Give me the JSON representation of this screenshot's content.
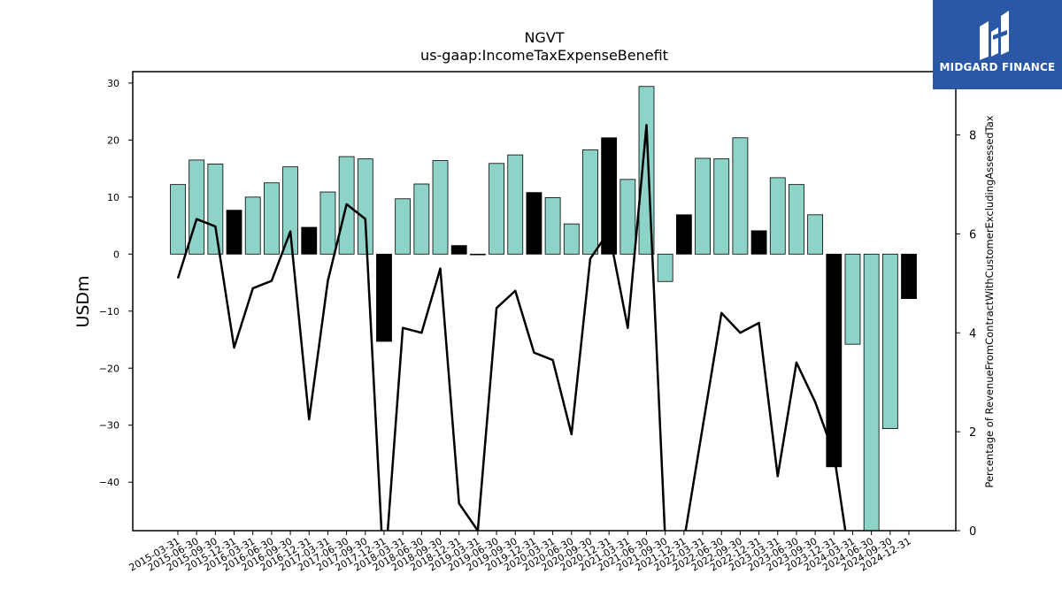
{
  "brand": {
    "name": "MIDGARD FINANCE"
  },
  "chart_data": {
    "type": "bar",
    "title": "NGVT",
    "subtitle": "us-gaap:IncomeTaxExpenseBenefit",
    "ylabel": "USDm",
    "y2label": "Percentage of RevenueFromContractWithCustomerExcludingAssessedTax",
    "ylim": [
      -48.5,
      32.0
    ],
    "y2lim": [
      0,
      9.28
    ],
    "yticks": [
      30,
      20,
      10,
      0,
      -10,
      -20,
      -30,
      -40
    ],
    "y2ticks": [
      0,
      2,
      4,
      6,
      8
    ],
    "categories": [
      "2015-03-31",
      "2015-06-30",
      "2015-09-30",
      "2015-12-31",
      "2016-03-31",
      "2016-06-30",
      "2016-09-30",
      "2016-12-31",
      "2017-03-31",
      "2017-06-30",
      "2017-09-30",
      "2017-12-31",
      "2018-03-31",
      "2018-06-30",
      "2018-09-30",
      "2018-12-31",
      "2019-03-31",
      "2019-06-30",
      "2019-09-30",
      "2019-12-31",
      "2020-03-31",
      "2020-06-30",
      "2020-09-30",
      "2020-12-31",
      "2021-03-31",
      "2021-06-30",
      "2021-09-30",
      "2021-12-31",
      "2022-03-31",
      "2022-06-30",
      "2022-09-30",
      "2022-12-31",
      "2023-03-31",
      "2023-06-30",
      "2023-09-30",
      "2023-12-31",
      "2024-03-31",
      "2024-06-30",
      "2024-09-30",
      "2024-12-31"
    ],
    "series": [
      {
        "kind": "bar",
        "values": [
          12.2,
          16.5,
          15.8,
          7.7,
          10.0,
          12.5,
          15.3,
          4.7,
          10.9,
          17.1,
          16.7,
          -15.3,
          9.7,
          12.3,
          16.4,
          1.5,
          0.0,
          15.9,
          17.4,
          10.8,
          9.9,
          5.3,
          18.3,
          20.4,
          13.1,
          29.4,
          -4.8,
          6.9,
          16.8,
          16.7,
          20.4,
          4.1,
          13.4,
          12.2,
          6.9,
          -37.3,
          -15.8,
          -48.5,
          -30.6,
          -7.8
        ],
        "highlight": [
          false,
          false,
          false,
          true,
          false,
          false,
          false,
          true,
          false,
          false,
          false,
          true,
          false,
          false,
          false,
          true,
          false,
          false,
          false,
          true,
          false,
          false,
          false,
          true,
          false,
          false,
          false,
          true,
          false,
          false,
          false,
          true,
          false,
          false,
          false,
          true,
          false,
          false,
          false,
          true
        ]
      },
      {
        "kind": "line",
        "axis": "right",
        "values": [
          5.1,
          6.3,
          6.15,
          3.7,
          4.9,
          5.05,
          6.05,
          2.25,
          5.05,
          6.6,
          6.3,
          -1.0,
          4.1,
          4.0,
          5.3,
          0.55,
          0.0,
          4.5,
          4.85,
          3.6,
          3.45,
          1.95,
          5.5,
          6.05,
          4.1,
          8.2,
          -0.2,
          -0.2,
          2.1,
          4.4,
          4.0,
          4.2,
          1.1,
          3.4,
          2.6,
          1.55,
          -1.0,
          null,
          null,
          null
        ]
      }
    ],
    "colors": {
      "bar": "#8dd3c7",
      "highlight": "#000000",
      "line": "#000000"
    },
    "grid": false
  }
}
